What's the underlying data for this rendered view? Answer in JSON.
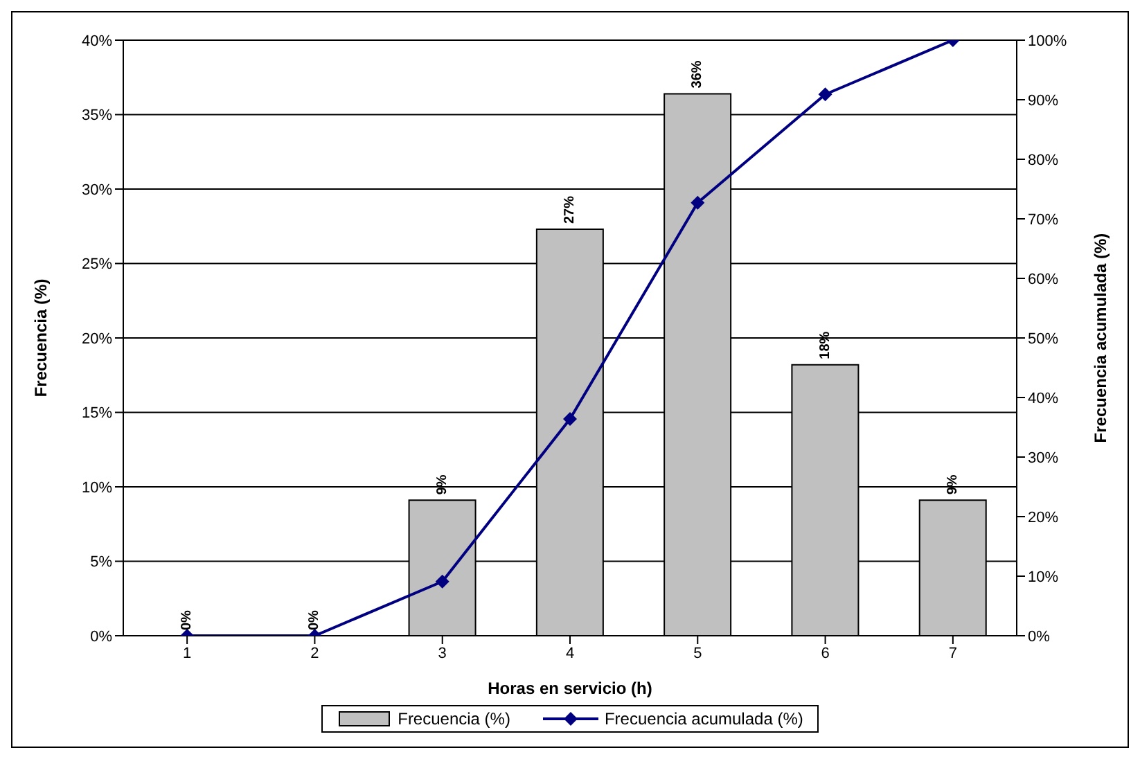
{
  "chart_data": {
    "type": "bar",
    "xlabel": "Horas en servicio (h)",
    "ylabel": "Frecuencia (%)",
    "y2label": "Frecuencia acumulada (%)",
    "categories": [
      "1",
      "2",
      "3",
      "4",
      "5",
      "6",
      "7"
    ],
    "series": [
      {
        "name": "Frecuencia (%)",
        "color": "#c0c0c0",
        "values": [
          0,
          0,
          9.1,
          27.3,
          36.4,
          18.2,
          9.1
        ],
        "value_labels": [
          "0%",
          "0%",
          "9%",
          "27%",
          "36%",
          "18%",
          "9%"
        ]
      },
      {
        "name": "Frecuencia acumulada (%)",
        "type": "line",
        "axis": "y2",
        "color": "#000080",
        "values": [
          0,
          0,
          9.1,
          36.4,
          72.7,
          90.9,
          100
        ]
      }
    ],
    "ylim": [
      0,
      40
    ],
    "yticks": [
      {
        "value": 0,
        "label": "0%"
      },
      {
        "value": 5,
        "label": "5%"
      },
      {
        "value": 10,
        "label": "10%"
      },
      {
        "value": 15,
        "label": "15%"
      },
      {
        "value": 20,
        "label": "20%"
      },
      {
        "value": 25,
        "label": "25%"
      },
      {
        "value": 30,
        "label": "30%"
      },
      {
        "value": 35,
        "label": "35%"
      },
      {
        "value": 40,
        "label": "40%"
      }
    ],
    "y2lim": [
      0,
      100
    ],
    "y2ticks": [
      {
        "value": 0,
        "label": "0%"
      },
      {
        "value": 10,
        "label": "10%"
      },
      {
        "value": 20,
        "label": "20%"
      },
      {
        "value": 30,
        "label": "30%"
      },
      {
        "value": 40,
        "label": "40%"
      },
      {
        "value": 50,
        "label": "50%"
      },
      {
        "value": 60,
        "label": "60%"
      },
      {
        "value": 70,
        "label": "70%"
      },
      {
        "value": 80,
        "label": "80%"
      },
      {
        "value": 90,
        "label": "90%"
      },
      {
        "value": 100,
        "label": "100%"
      }
    ],
    "grid": "y",
    "legend": "bottom",
    "marker": "diamond",
    "line_style": "solid"
  }
}
